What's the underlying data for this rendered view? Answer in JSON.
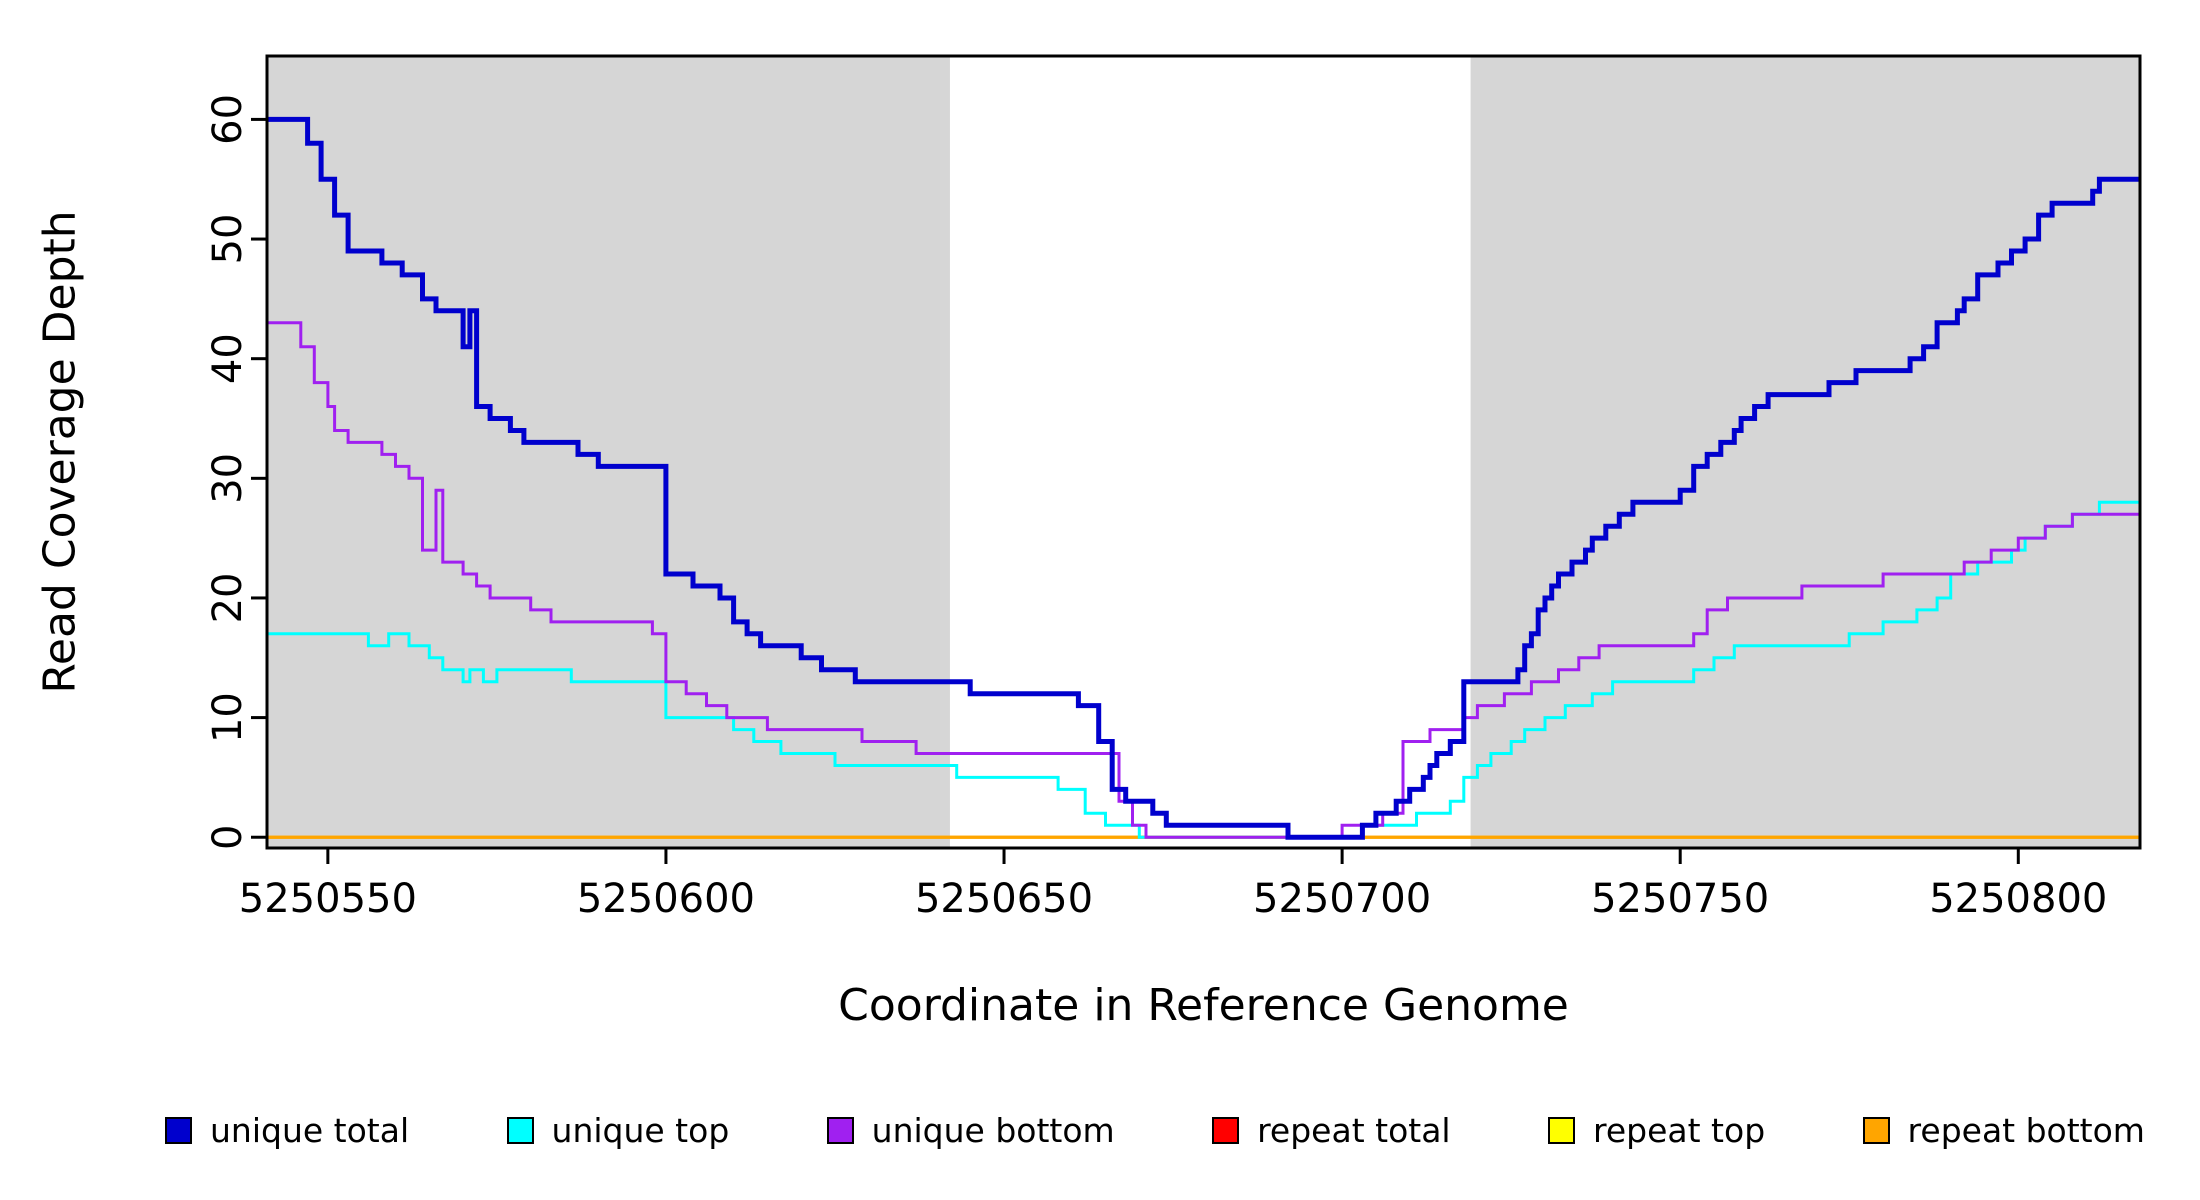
{
  "page": {
    "background": "#ffffff",
    "text_color": "#000000"
  },
  "chart_data": {
    "type": "line",
    "subtype": "step-coverage-plot",
    "title": "",
    "xlabel": "Coordinate in Reference Genome",
    "ylabel": "Read Coverage Depth",
    "xlim": [
      5250541,
      5250818
    ],
    "ylim": [
      -0.9,
      65.3
    ],
    "xticks": [
      5250550,
      5250600,
      5250650,
      5250700,
      5250750,
      5250800
    ],
    "yticks": [
      0,
      10,
      20,
      30,
      40,
      50,
      60
    ],
    "grid": false,
    "box": true,
    "shaded_regions": [
      {
        "x0": 5250541,
        "x1": 5250642,
        "color": "#d6d6d6"
      },
      {
        "x0": 5250719,
        "x1": 5250818,
        "color": "#d6d6d6"
      }
    ],
    "step_mode": "after",
    "series": [
      {
        "name": "repeat total",
        "color": "#ff0000",
        "width": 3,
        "points": [
          [
            5250541,
            0
          ],
          [
            5250818,
            0
          ]
        ]
      },
      {
        "name": "repeat top",
        "color": "#ffff00",
        "width": 3,
        "points": [
          [
            5250541,
            0
          ],
          [
            5250818,
            0
          ]
        ]
      },
      {
        "name": "repeat bottom",
        "color": "#ffa500",
        "width": 3,
        "points": [
          [
            5250541,
            0
          ],
          [
            5250818,
            0
          ]
        ]
      },
      {
        "name": "unique top",
        "color": "#00ffff",
        "width": 3,
        "points": [
          [
            5250541,
            17
          ],
          [
            5250556,
            16
          ],
          [
            5250559,
            17
          ],
          [
            5250562,
            16
          ],
          [
            5250565,
            15
          ],
          [
            5250567,
            14
          ],
          [
            5250570,
            13
          ],
          [
            5250571,
            14
          ],
          [
            5250573,
            13
          ],
          [
            5250575,
            14
          ],
          [
            5250586,
            13
          ],
          [
            5250600,
            10
          ],
          [
            5250610,
            9
          ],
          [
            5250613,
            8
          ],
          [
            5250617,
            7
          ],
          [
            5250625,
            6
          ],
          [
            5250643,
            5
          ],
          [
            5250658,
            4
          ],
          [
            5250662,
            2
          ],
          [
            5250665,
            1
          ],
          [
            5250670,
            0
          ],
          [
            5250703,
            1
          ],
          [
            5250711,
            2
          ],
          [
            5250716,
            3
          ],
          [
            5250718,
            5
          ],
          [
            5250720,
            6
          ],
          [
            5250722,
            7
          ],
          [
            5250725,
            8
          ],
          [
            5250727,
            9
          ],
          [
            5250730,
            10
          ],
          [
            5250733,
            11
          ],
          [
            5250737,
            12
          ],
          [
            5250740,
            13
          ],
          [
            5250752,
            14
          ],
          [
            5250755,
            15
          ],
          [
            5250758,
            16
          ],
          [
            5250775,
            17
          ],
          [
            5250780,
            18
          ],
          [
            5250785,
            19
          ],
          [
            5250788,
            20
          ],
          [
            5250790,
            22
          ],
          [
            5250794,
            23
          ],
          [
            5250799,
            24
          ],
          [
            5250801,
            25
          ],
          [
            5250804,
            26
          ],
          [
            5250808,
            27
          ],
          [
            5250812,
            28
          ],
          [
            5250818,
            28
          ]
        ]
      },
      {
        "name": "unique bottom",
        "color": "#a020f0",
        "width": 3,
        "points": [
          [
            5250541,
            43
          ],
          [
            5250546,
            41
          ],
          [
            5250548,
            38
          ],
          [
            5250550,
            36
          ],
          [
            5250551,
            34
          ],
          [
            5250553,
            33
          ],
          [
            5250558,
            32
          ],
          [
            5250560,
            31
          ],
          [
            5250562,
            30
          ],
          [
            5250564,
            24
          ],
          [
            5250566,
            29
          ],
          [
            5250567,
            23
          ],
          [
            5250570,
            22
          ],
          [
            5250572,
            21
          ],
          [
            5250574,
            20
          ],
          [
            5250580,
            19
          ],
          [
            5250583,
            18
          ],
          [
            5250598,
            17
          ],
          [
            5250600,
            13
          ],
          [
            5250603,
            12
          ],
          [
            5250606,
            11
          ],
          [
            5250609,
            10
          ],
          [
            5250615,
            9
          ],
          [
            5250629,
            8
          ],
          [
            5250637,
            7
          ],
          [
            5250667,
            3
          ],
          [
            5250669,
            1
          ],
          [
            5250671,
            0
          ],
          [
            5250700,
            1
          ],
          [
            5250706,
            2
          ],
          [
            5250709,
            8
          ],
          [
            5250713,
            9
          ],
          [
            5250718,
            10
          ],
          [
            5250720,
            11
          ],
          [
            5250724,
            12
          ],
          [
            5250728,
            13
          ],
          [
            5250732,
            14
          ],
          [
            5250735,
            15
          ],
          [
            5250738,
            16
          ],
          [
            5250752,
            17
          ],
          [
            5250754,
            19
          ],
          [
            5250757,
            20
          ],
          [
            5250768,
            21
          ],
          [
            5250780,
            22
          ],
          [
            5250792,
            23
          ],
          [
            5250796,
            24
          ],
          [
            5250800,
            25
          ],
          [
            5250804,
            26
          ],
          [
            5250808,
            27
          ],
          [
            5250818,
            27
          ]
        ]
      },
      {
        "name": "unique total",
        "color": "#0000cd",
        "width": 5,
        "points": [
          [
            5250541,
            60
          ],
          [
            5250547,
            58
          ],
          [
            5250549,
            55
          ],
          [
            5250551,
            52
          ],
          [
            5250553,
            49
          ],
          [
            5250558,
            48
          ],
          [
            5250561,
            47
          ],
          [
            5250564,
            45
          ],
          [
            5250566,
            44
          ],
          [
            5250570,
            41
          ],
          [
            5250571,
            44
          ],
          [
            5250572,
            36
          ],
          [
            5250574,
            35
          ],
          [
            5250577,
            34
          ],
          [
            5250579,
            33
          ],
          [
            5250587,
            32
          ],
          [
            5250590,
            31
          ],
          [
            5250600,
            22
          ],
          [
            5250604,
            21
          ],
          [
            5250608,
            20
          ],
          [
            5250610,
            18
          ],
          [
            5250612,
            17
          ],
          [
            5250614,
            16
          ],
          [
            5250620,
            15
          ],
          [
            5250623,
            14
          ],
          [
            5250628,
            13
          ],
          [
            5250645,
            12
          ],
          [
            5250661,
            11
          ],
          [
            5250664,
            8
          ],
          [
            5250666,
            4
          ],
          [
            5250668,
            3
          ],
          [
            5250672,
            2
          ],
          [
            5250674,
            1
          ],
          [
            5250692,
            0
          ],
          [
            5250703,
            1
          ],
          [
            5250705,
            2
          ],
          [
            5250708,
            3
          ],
          [
            5250710,
            4
          ],
          [
            5250712,
            5
          ],
          [
            5250713,
            6
          ],
          [
            5250714,
            7
          ],
          [
            5250716,
            8
          ],
          [
            5250718,
            13
          ],
          [
            5250726,
            14
          ],
          [
            5250727,
            16
          ],
          [
            5250728,
            17
          ],
          [
            5250729,
            19
          ],
          [
            5250730,
            20
          ],
          [
            5250731,
            21
          ],
          [
            5250732,
            22
          ],
          [
            5250734,
            23
          ],
          [
            5250736,
            24
          ],
          [
            5250737,
            25
          ],
          [
            5250739,
            26
          ],
          [
            5250741,
            27
          ],
          [
            5250743,
            28
          ],
          [
            5250750,
            29
          ],
          [
            5250752,
            31
          ],
          [
            5250754,
            32
          ],
          [
            5250756,
            33
          ],
          [
            5250758,
            34
          ],
          [
            5250759,
            35
          ],
          [
            5250761,
            36
          ],
          [
            5250763,
            37
          ],
          [
            5250772,
            38
          ],
          [
            5250776,
            39
          ],
          [
            5250784,
            40
          ],
          [
            5250786,
            41
          ],
          [
            5250788,
            43
          ],
          [
            5250791,
            44
          ],
          [
            5250792,
            45
          ],
          [
            5250794,
            47
          ],
          [
            5250797,
            48
          ],
          [
            5250799,
            49
          ],
          [
            5250801,
            50
          ],
          [
            5250803,
            52
          ],
          [
            5250805,
            53
          ],
          [
            5250811,
            54
          ],
          [
            5250812,
            55
          ],
          [
            5250818,
            55
          ]
        ]
      }
    ],
    "legend": {
      "position": "bottom",
      "items": [
        {
          "label": "unique total",
          "color": "#0000cd"
        },
        {
          "label": "unique top",
          "color": "#00ffff"
        },
        {
          "label": "unique bottom",
          "color": "#a020f0"
        },
        {
          "label": "repeat total",
          "color": "#ff0000"
        },
        {
          "label": "repeat top",
          "color": "#ffff00"
        },
        {
          "label": "repeat bottom",
          "color": "#ffa500"
        }
      ]
    }
  }
}
